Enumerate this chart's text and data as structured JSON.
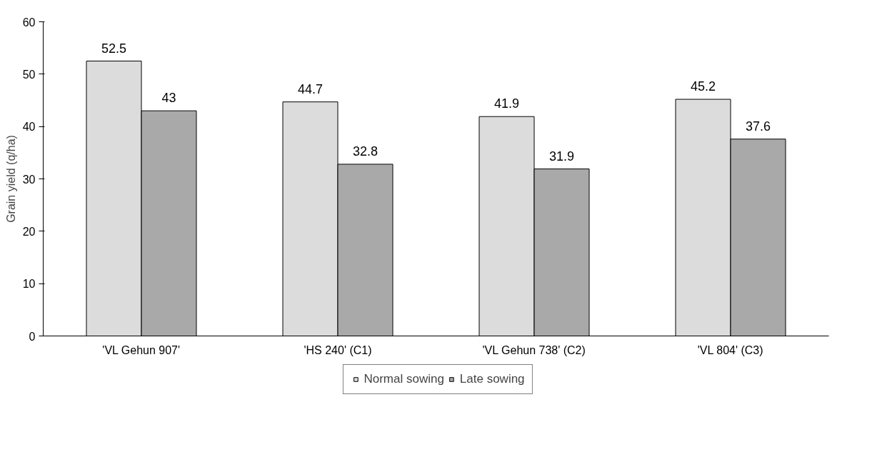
{
  "chart_data": {
    "type": "bar",
    "ylabel": "Grain yield (q/ha)",
    "categories": [
      "'VL Gehun 907'",
      "'HS 240' (C1)",
      "'VL Gehun 738' (C2)",
      "'VL 804' (C3)"
    ],
    "series": [
      {
        "name": "Normal sowing",
        "color": "#dcdcdc",
        "values": [
          52.5,
          44.7,
          41.9,
          45.2
        ]
      },
      {
        "name": "Late sowing",
        "color": "#a9a9a9",
        "values": [
          43,
          32.8,
          31.9,
          37.6
        ]
      }
    ],
    "ylim": [
      0,
      60
    ],
    "yticks": [
      0,
      10,
      20,
      30,
      40,
      50,
      60
    ],
    "grid": false,
    "legend": "bottom",
    "data_labels": true
  }
}
